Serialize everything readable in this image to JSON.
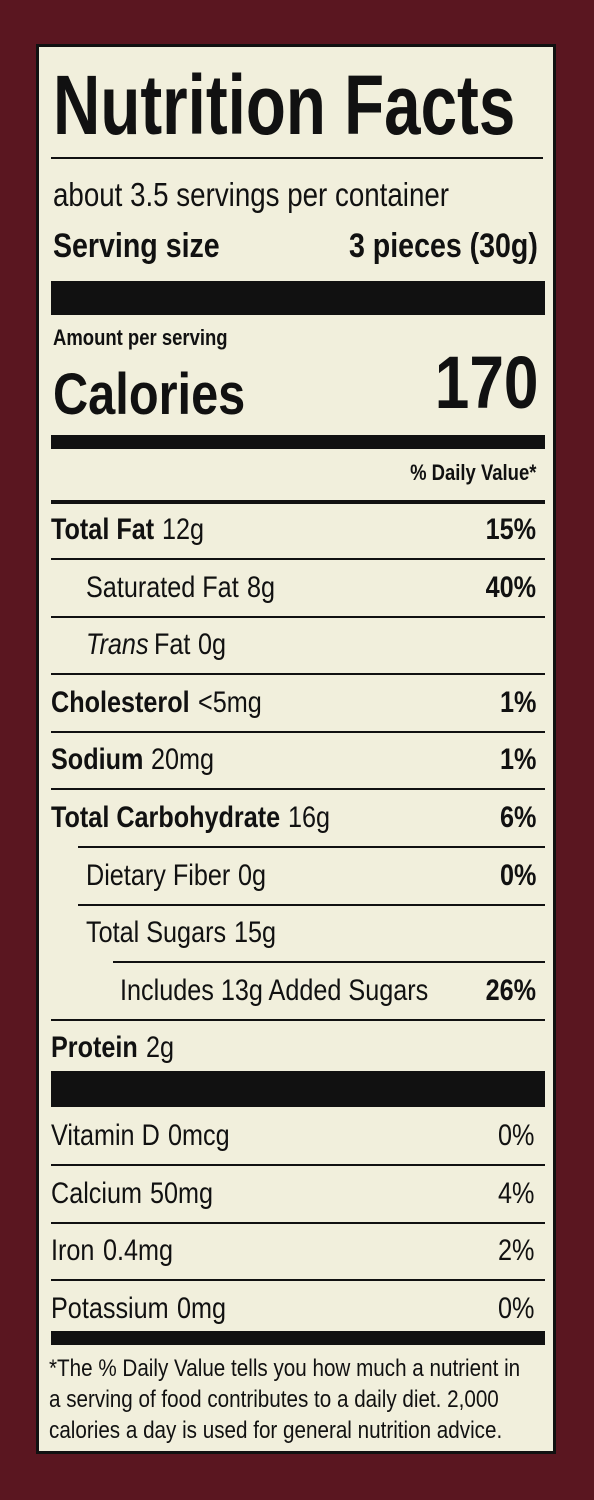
{
  "title": "Nutrition Facts",
  "servings_per_container": "about 3.5 servings per container",
  "serving_size": {
    "label": "Serving size",
    "value": "3 pieces (30g)"
  },
  "amount_per_serving": "Amount per serving",
  "calories": {
    "label": "Calories",
    "value": "170"
  },
  "daily_value_header": "% Daily Value*",
  "nutrients": [
    {
      "name": "Total Fat",
      "amount": "12g",
      "dv": "15%"
    },
    {
      "name": "Saturated Fat",
      "amount": "8g",
      "dv": "40%"
    },
    {
      "name_italic": "Trans",
      "name": "Fat",
      "amount": "0g"
    },
    {
      "name": "Cholesterol",
      "amount": "<5mg",
      "dv": "1%"
    },
    {
      "name": "Sodium",
      "amount": "20mg",
      "dv": "1%"
    },
    {
      "name": "Total Carbohydrate",
      "amount": "16g",
      "dv": "6%"
    },
    {
      "name": "Dietary Fiber",
      "amount": "0g",
      "dv": "0%"
    },
    {
      "name": "Total Sugars",
      "amount": "15g"
    },
    {
      "name": "Includes 13g Added Sugars",
      "dv": "26%"
    },
    {
      "name": "Protein",
      "amount": "2g"
    }
  ],
  "vitamins": [
    {
      "name": "Vitamin D",
      "amount": "0mcg",
      "dv": "0%"
    },
    {
      "name": "Calcium",
      "amount": "50mg",
      "dv": "4%"
    },
    {
      "name": "Iron",
      "amount": "0.4mg",
      "dv": "2%"
    },
    {
      "name": "Potassium",
      "amount": "0mg",
      "dv": "0%"
    }
  ],
  "footnote": [
    "*The % Daily Value tells you how much a nutrient in",
    "a serving of food contributes to a daily diet. 2,000",
    "calories a day is used for general nutrition advice."
  ]
}
